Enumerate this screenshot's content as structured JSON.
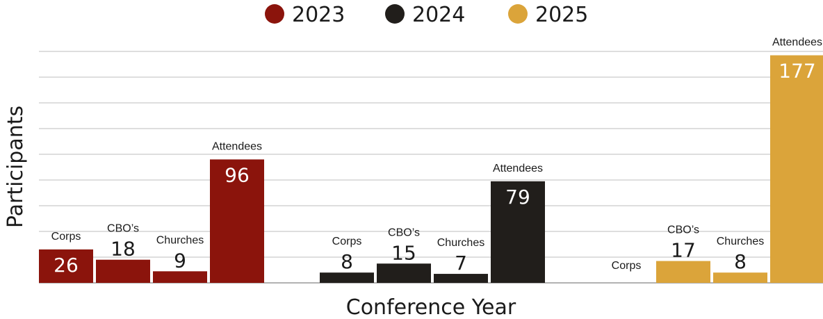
{
  "chart_data": {
    "type": "bar",
    "xlabel": "Conference Year",
    "ylabel": "Participants",
    "ylim": [
      0,
      180
    ],
    "grid": true,
    "legend_position": "top-center",
    "categories": [
      "Corps",
      "CBO’s",
      "Churches",
      "Attendees"
    ],
    "series": [
      {
        "name": "2023",
        "color": "#8b140c",
        "values": [
          26,
          18,
          9,
          96
        ],
        "value_labels": [
          "26",
          "18",
          "9",
          "96"
        ],
        "value_label_inside": [
          true,
          false,
          false,
          true
        ]
      },
      {
        "name": "2024",
        "color": "#211e1b",
        "values": [
          8,
          15,
          7,
          79
        ],
        "value_labels": [
          "8",
          "15",
          "7",
          "79"
        ],
        "value_label_inside": [
          false,
          false,
          false,
          true
        ]
      },
      {
        "name": "2025",
        "color": "#dba43a",
        "values": [
          0,
          17,
          8,
          177
        ],
        "value_labels": [
          "",
          "17",
          "8",
          "177"
        ],
        "value_label_inside": [
          false,
          false,
          false,
          true
        ]
      }
    ]
  }
}
